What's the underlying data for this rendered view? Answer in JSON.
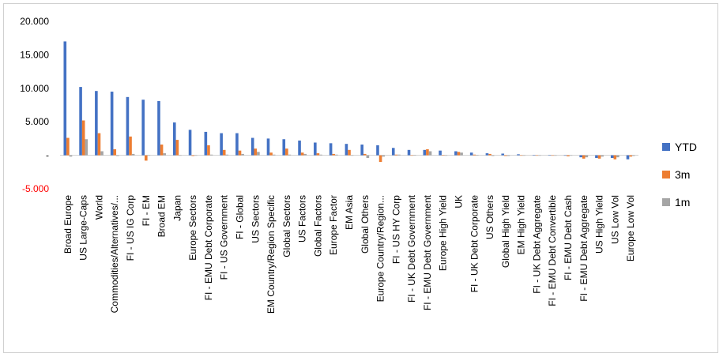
{
  "chart_data": {
    "type": "bar",
    "title": "",
    "xlabel": "",
    "ylabel": "",
    "ylim": [
      -5000,
      20000
    ],
    "yticks": [
      -5000,
      0,
      5000,
      10000,
      15000,
      20000
    ],
    "ytick_labels": [
      "-5.000",
      "-",
      "5.000",
      "10.000",
      "15.000",
      "20.000"
    ],
    "grid": false,
    "legend_position": "right",
    "categories": [
      "Broad Europe",
      "US Large-Caps",
      "World",
      "Commodities/Alternatives/...",
      "FI - US IG Corp",
      "FI - EM",
      "Broad EM",
      "Japan",
      "Europe Sectors",
      "FI - EMU Debt Corporate",
      "FI - US Government",
      "FI - Global",
      "US Sectors",
      "EM Country/Region Specific",
      "Global Sectors",
      "US Factors",
      "Global Factors",
      "Europe Factor",
      "EM Asia",
      "Global Others",
      "Europe Country/Region...",
      "FI - US HY Corp",
      "FI - UK Debt Government",
      "FI - EMU Debt Government",
      "Europe High Yield",
      "UK",
      "FI - UK Debt Corporate",
      "US Others",
      "Global High Yield",
      "EM High Yield",
      "FI - UK Debt Aggregate",
      "FI - EMU Debt Convertible",
      "FI - EMU Debt Cash",
      "FI - EMU Debt Aggregate",
      "US High Yield",
      "US Low Vol",
      "Europe Low Vol"
    ],
    "series": [
      {
        "name": "YTD",
        "color": "#4472c4",
        "values": [
          17000,
          10200,
          9600,
          9500,
          8700,
          8300,
          8100,
          4900,
          3800,
          3500,
          3300,
          3300,
          2600,
          2500,
          2400,
          2200,
          1900,
          1800,
          1700,
          1600,
          1500,
          1100,
          800,
          800,
          700,
          600,
          400,
          300,
          250,
          150,
          50,
          30,
          -50,
          -300,
          -400,
          -400,
          -600
        ]
      },
      {
        "name": "3m",
        "color": "#ed7d31",
        "values": [
          2600,
          5200,
          3300,
          900,
          2800,
          -800,
          1600,
          2300,
          -100,
          1500,
          800,
          700,
          1000,
          400,
          1000,
          400,
          300,
          200,
          800,
          200,
          -1000,
          100,
          0,
          900,
          50,
          500,
          100,
          200,
          -100,
          -50,
          -50,
          -50,
          -150,
          -500,
          -500,
          -600,
          -200
        ]
      },
      {
        "name": "1m",
        "color": "#a5a5a5",
        "values": [
          -200,
          2400,
          600,
          -100,
          200,
          0,
          300,
          0,
          0,
          100,
          100,
          200,
          500,
          100,
          100,
          200,
          100,
          100,
          0,
          -400,
          -200,
          100,
          50,
          600,
          0,
          400,
          50,
          -100,
          -100,
          0,
          0,
          0,
          0,
          -300,
          -200,
          -300,
          -100
        ]
      }
    ]
  }
}
